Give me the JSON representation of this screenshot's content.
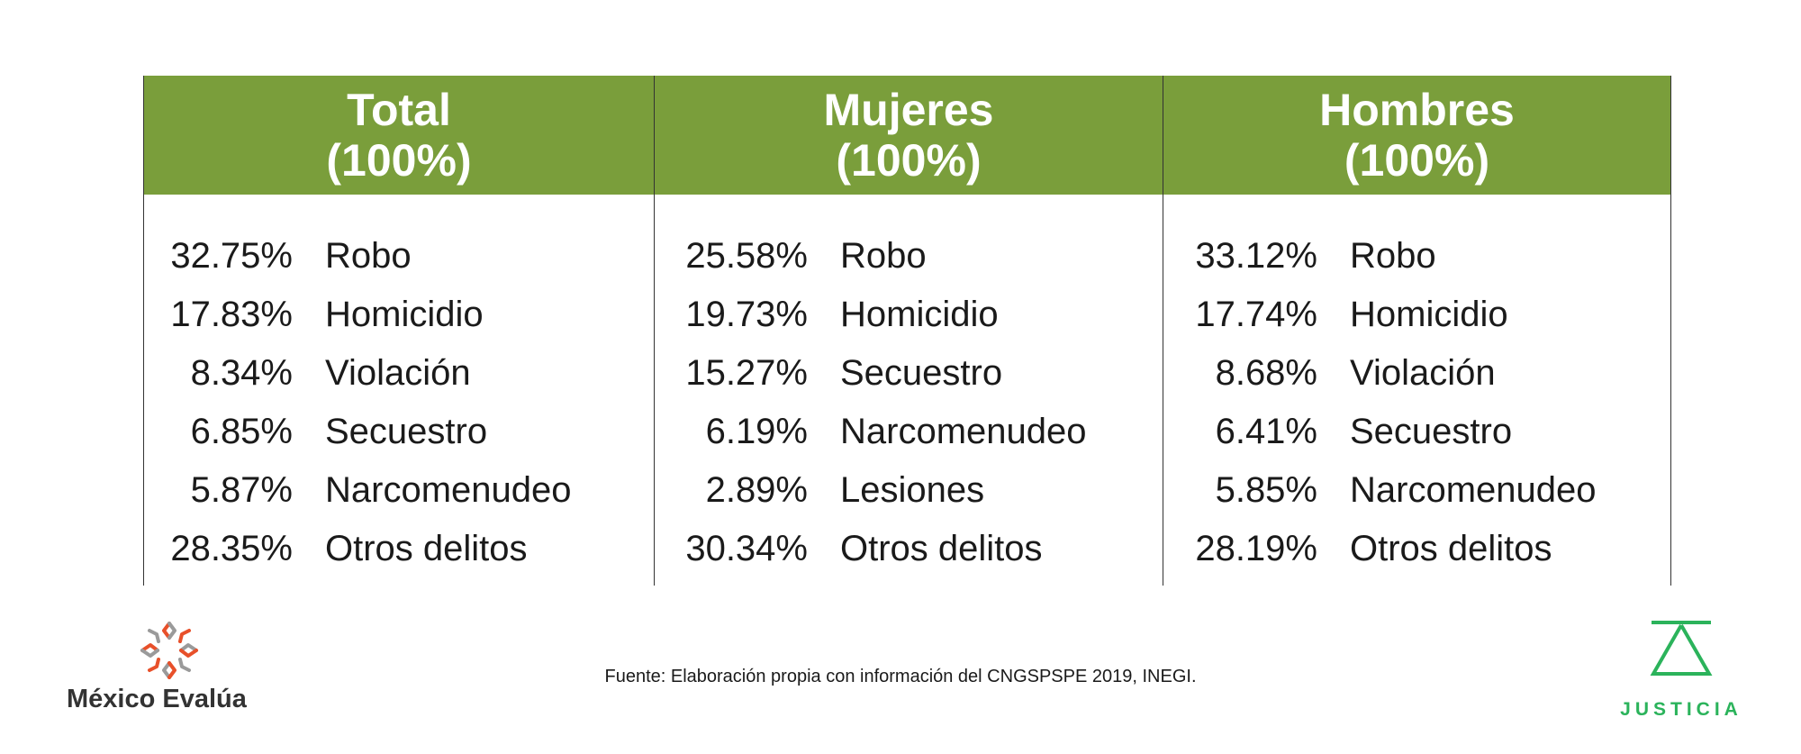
{
  "chart_data": {
    "type": "table",
    "columns": [
      {
        "title": "Total",
        "subtitle": "(100%)",
        "rows": [
          {
            "value": "32.75%",
            "label": "Robo"
          },
          {
            "value": "17.83%",
            "label": "Homicidio"
          },
          {
            "value": "8.34%",
            "label": "Violación"
          },
          {
            "value": "6.85%",
            "label": "Secuestro"
          },
          {
            "value": "5.87%",
            "label": "Narcomenudeo"
          },
          {
            "value": "28.35%",
            "label": "Otros delitos"
          }
        ]
      },
      {
        "title": "Mujeres",
        "subtitle": "(100%)",
        "rows": [
          {
            "value": "25.58%",
            "label": "Robo"
          },
          {
            "value": "19.73%",
            "label": "Homicidio"
          },
          {
            "value": "15.27%",
            "label": "Secuestro"
          },
          {
            "value": "6.19%",
            "label": "Narcomenudeo"
          },
          {
            "value": "2.89%",
            "label": "Lesiones"
          },
          {
            "value": "30.34%",
            "label": "Otros delitos"
          }
        ]
      },
      {
        "title": "Hombres",
        "subtitle": "(100%)",
        "rows": [
          {
            "value": "33.12%",
            "label": "Robo"
          },
          {
            "value": "17.74%",
            "label": "Homicidio"
          },
          {
            "value": "8.68%",
            "label": "Violación"
          },
          {
            "value": "6.41%",
            "label": "Secuestro"
          },
          {
            "value": "5.85%",
            "label": "Narcomenudeo"
          },
          {
            "value": "28.19%",
            "label": "Otros delitos"
          }
        ]
      }
    ],
    "header_color": "#7a9e3b"
  },
  "source": "Fuente: Elaboración propia con información del CNGSPSPE 2019, INEGI.",
  "logos": {
    "left": {
      "name": "México Evalúa",
      "icon": "star-burst-icon",
      "color": "#e8502a"
    },
    "right": {
      "name": "JUSTICIA",
      "icon": "scale-triangle-icon",
      "color": "#2bb35b"
    }
  }
}
